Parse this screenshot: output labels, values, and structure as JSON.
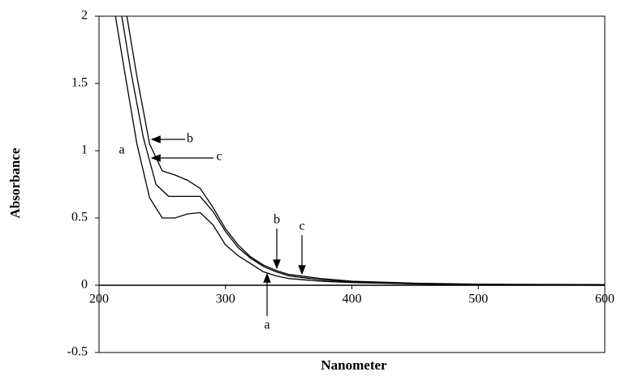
{
  "chart_data": {
    "type": "line",
    "xlabel": "Nanometer",
    "ylabel": "Absorbance",
    "xlim": [
      200,
      600
    ],
    "ylim": [
      -0.5,
      2
    ],
    "xticks": [
      200,
      300,
      400,
      500,
      600
    ],
    "yticks": [
      -0.5,
      0,
      0.5,
      1,
      1.5,
      2
    ],
    "series": [
      {
        "name": "a",
        "color": "#000000",
        "x": [
          213,
          220,
          230,
          240,
          250,
          260,
          270,
          280,
          290,
          300,
          310,
          320,
          330,
          340,
          350,
          375,
          400,
          450,
          500,
          600
        ],
        "values": [
          2,
          1.6,
          1.05,
          0.65,
          0.5,
          0.5,
          0.53,
          0.54,
          0.45,
          0.3,
          0.22,
          0.16,
          0.1,
          0.07,
          0.05,
          0.03,
          0.02,
          0.01,
          0.005,
          0
        ]
      },
      {
        "name": "b",
        "color": "#000000",
        "x": [
          218,
          225,
          235,
          245,
          255,
          265,
          280,
          290,
          300,
          310,
          320,
          330,
          340,
          350,
          375,
          400,
          450,
          500,
          600
        ],
        "values": [
          2,
          1.6,
          1.1,
          0.75,
          0.66,
          0.66,
          0.66,
          0.55,
          0.4,
          0.28,
          0.2,
          0.14,
          0.1,
          0.07,
          0.04,
          0.025,
          0.01,
          0.005,
          0
        ]
      },
      {
        "name": "c",
        "color": "#000000",
        "x": [
          222,
          230,
          240,
          250,
          260,
          270,
          280,
          290,
          300,
          310,
          320,
          330,
          340,
          350,
          375,
          400,
          450,
          500,
          600
        ],
        "values": [
          2,
          1.55,
          1.05,
          0.85,
          0.82,
          0.78,
          0.72,
          0.58,
          0.42,
          0.3,
          0.21,
          0.15,
          0.11,
          0.08,
          0.05,
          0.03,
          0.015,
          0.008,
          0.005
        ]
      }
    ]
  }
}
